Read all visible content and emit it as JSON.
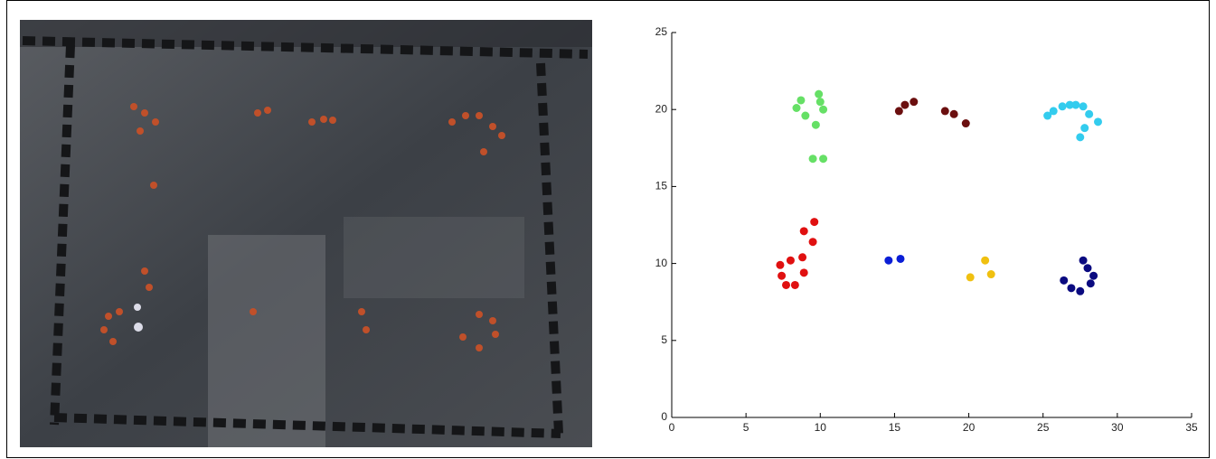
{
  "chart_data": {
    "type": "scatter",
    "xlim": [
      0,
      35
    ],
    "xticks": [
      0,
      5,
      10,
      15,
      20,
      25,
      30,
      35
    ],
    "ylim": [
      0,
      25
    ],
    "yticks": [
      0,
      5,
      10,
      15,
      20,
      25
    ],
    "series": [
      {
        "color": "#66e066",
        "x": [
          8.7,
          9.9,
          8.4,
          9.0,
          10.0,
          10.2,
          9.7,
          9.5,
          10.2
        ],
        "values": [
          20.6,
          21.0,
          20.1,
          19.6,
          20.5,
          20.0,
          19.0,
          16.8,
          16.8
        ]
      },
      {
        "color": "#6b0f0f",
        "x": [
          15.3,
          15.7,
          16.3,
          18.4,
          19.0,
          19.8
        ],
        "values": [
          19.9,
          20.3,
          20.5,
          19.9,
          19.7,
          19.1
        ]
      },
      {
        "color": "#33ccee",
        "x": [
          25.3,
          25.7,
          26.3,
          26.8,
          27.2,
          27.7,
          28.1,
          28.7,
          27.8,
          27.5
        ],
        "values": [
          19.6,
          19.9,
          20.2,
          20.3,
          20.3,
          20.2,
          19.7,
          19.2,
          18.8,
          18.2
        ]
      },
      {
        "color": "#e01010",
        "x": [
          9.6,
          8.9,
          9.5,
          8.8,
          8.0,
          7.3,
          7.4,
          8.9,
          7.7,
          8.3
        ],
        "values": [
          12.7,
          12.1,
          11.4,
          10.4,
          10.2,
          9.9,
          9.2,
          9.4,
          8.6,
          8.6
        ]
      },
      {
        "color": "#0a1ed6",
        "x": [
          14.6,
          15.4
        ],
        "values": [
          10.2,
          10.3
        ]
      },
      {
        "color": "#f0c010",
        "x": [
          21.1,
          21.5,
          20.1
        ],
        "values": [
          10.2,
          9.3,
          9.1
        ]
      },
      {
        "color": "#0a0a80",
        "x": [
          27.7,
          28.0,
          28.4,
          28.2,
          26.4,
          26.9,
          27.5
        ],
        "values": [
          10.2,
          9.7,
          9.2,
          8.7,
          8.9,
          8.4,
          8.2
        ]
      }
    ]
  }
}
